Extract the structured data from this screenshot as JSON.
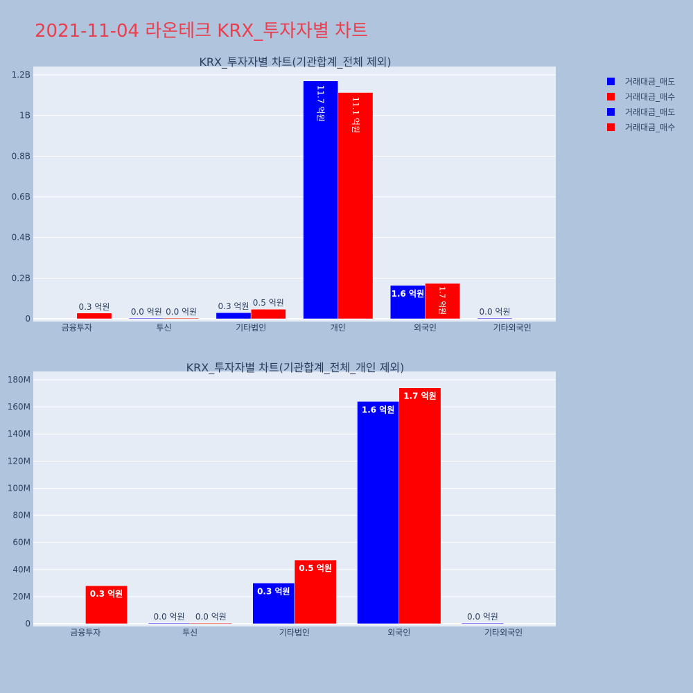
{
  "title": "2021-11-04 라온테크 KRX_투자자별 차트",
  "colors": {
    "background": "#b0c4de",
    "plot_bg": "#e5ecf6",
    "sell": "#0000ff",
    "buy": "#ff0000",
    "title": "#e8404f"
  },
  "legend": [
    {
      "label": "거래대금_매도",
      "color": "#0000ff"
    },
    {
      "label": "거래대금_매수",
      "color": "#ff0000"
    },
    {
      "label": "거래대금_매도",
      "color": "#0000ff"
    },
    {
      "label": "거래대금_매수",
      "color": "#ff0000"
    }
  ],
  "chart_data": [
    {
      "type": "bar",
      "title": "KRX_투자자별 차트(기관합계_전체 제외)",
      "categories": [
        "금융투자",
        "투신",
        "기타법인",
        "개인",
        "외국인",
        "기타외국인"
      ],
      "yticks": [
        "0",
        "0.2B",
        "0.4B",
        "0.6B",
        "0.8B",
        "1B",
        "1.2B"
      ],
      "ylim": [
        0,
        1200000000
      ],
      "series": [
        {
          "name": "거래대금_매도",
          "color": "#0000ff",
          "values": [
            null,
            0,
            30000000,
            1170000000,
            164000000,
            0
          ],
          "labels": [
            "",
            "0.0 억원",
            "0.3 억원",
            "11.7 억원",
            "1.6 억원",
            "0.0 억원"
          ]
        },
        {
          "name": "거래대금_매수",
          "color": "#ff0000",
          "values": [
            28000000,
            0,
            47000000,
            1113000000,
            174000000,
            null
          ],
          "labels": [
            "0.3 억원",
            "0.0 억원",
            "0.5 억원",
            "11.1 억원",
            "1.7 억원",
            ""
          ]
        }
      ]
    },
    {
      "type": "bar",
      "title": "KRX_투자자별 차트(기관합계_전체_개인 제외)",
      "categories": [
        "금융투자",
        "투신",
        "기타법인",
        "외국인",
        "기타외국인"
      ],
      "yticks": [
        "0",
        "20M",
        "40M",
        "60M",
        "80M",
        "100M",
        "120M",
        "140M",
        "160M",
        "180M"
      ],
      "ylim": [
        0,
        180000000
      ],
      "series": [
        {
          "name": "거래대금_매도",
          "color": "#0000ff",
          "values": [
            null,
            0,
            30000000,
            164000000,
            0
          ],
          "labels": [
            "",
            "0.0 억원",
            "0.3 억원",
            "1.6 억원",
            "0.0 억원"
          ]
        },
        {
          "name": "거래대금_매수",
          "color": "#ff0000",
          "values": [
            28000000,
            0,
            47000000,
            174000000,
            null
          ],
          "labels": [
            "0.3 억원",
            "0.0 억원",
            "0.5 억원",
            "1.7 억원",
            ""
          ]
        }
      ]
    }
  ]
}
